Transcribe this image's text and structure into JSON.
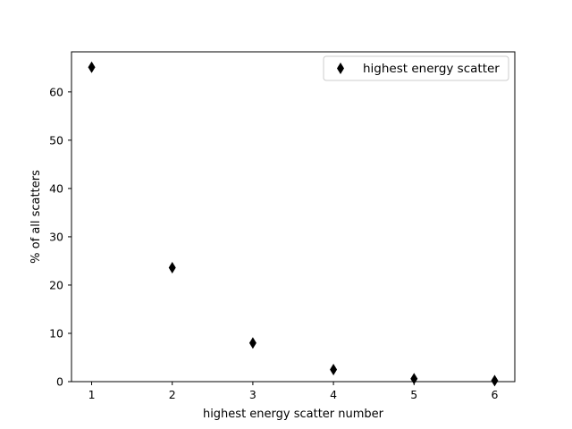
{
  "chart_data": {
    "type": "scatter",
    "title": "",
    "xlabel": "highest energy scatter number",
    "ylabel": "% of all scatters",
    "xlim": [
      0.75,
      6.25
    ],
    "ylim": [
      0,
      68.3
    ],
    "xticks": [
      1,
      2,
      3,
      4,
      5,
      6
    ],
    "yticks": [
      0,
      10,
      20,
      30,
      40,
      50,
      60
    ],
    "grid": false,
    "legend_position": "top-right",
    "series": [
      {
        "name": "highest energy scatter",
        "marker": "thin-diamond",
        "color": "#000000",
        "x": [
          1,
          2,
          3,
          4,
          5,
          6
        ],
        "y": [
          65.1,
          23.6,
          8.0,
          2.5,
          0.6,
          0.2
        ]
      }
    ]
  }
}
